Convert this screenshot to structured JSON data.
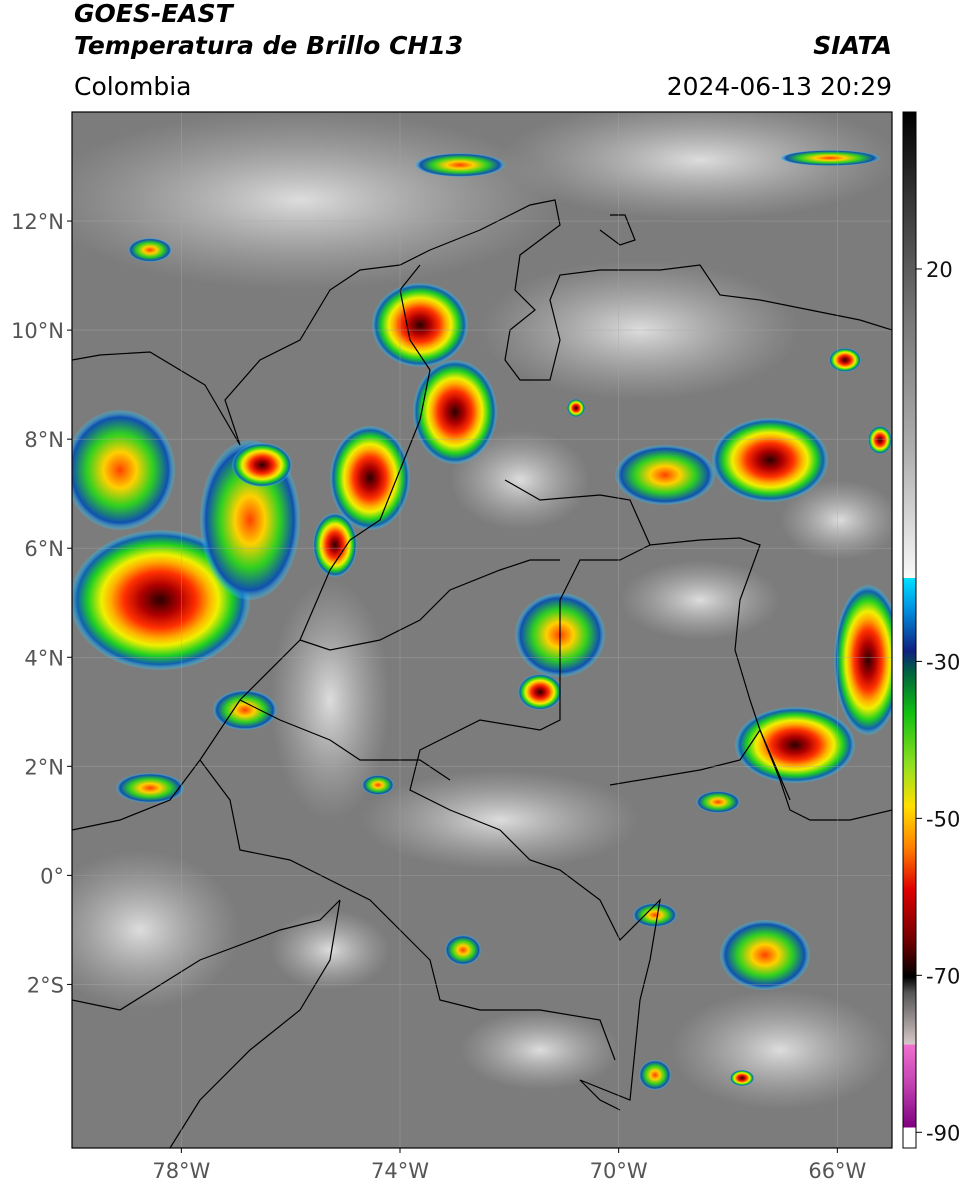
{
  "header": {
    "satellite": "GOES-EAST",
    "product": "Temperatura de Brillo CH13",
    "source": "SIATA",
    "region": "Colombia",
    "datetime": "2024-06-13 20:29"
  },
  "map": {
    "xlim": [
      -80,
      -65
    ],
    "ylim": [
      -5,
      14
    ],
    "xticks": [
      {
        "value": -78,
        "label": "78°W"
      },
      {
        "value": -74,
        "label": "74°W"
      },
      {
        "value": -70,
        "label": "70°W"
      },
      {
        "value": -66,
        "label": "66°W"
      }
    ],
    "yticks": [
      {
        "value": 12,
        "label": "12°N"
      },
      {
        "value": 10,
        "label": "10°N"
      },
      {
        "value": 8,
        "label": "8°N"
      },
      {
        "value": 6,
        "label": "6°N"
      },
      {
        "value": 4,
        "label": "4°N"
      },
      {
        "value": 2,
        "label": "2°N"
      },
      {
        "value": 0,
        "label": "0°"
      },
      {
        "value": -2,
        "label": "2°S"
      }
    ],
    "grid": true
  },
  "colorbar": {
    "lim": [
      -92,
      40
    ],
    "ticks": [
      20,
      -30,
      -50,
      -70,
      -90
    ]
  }
}
